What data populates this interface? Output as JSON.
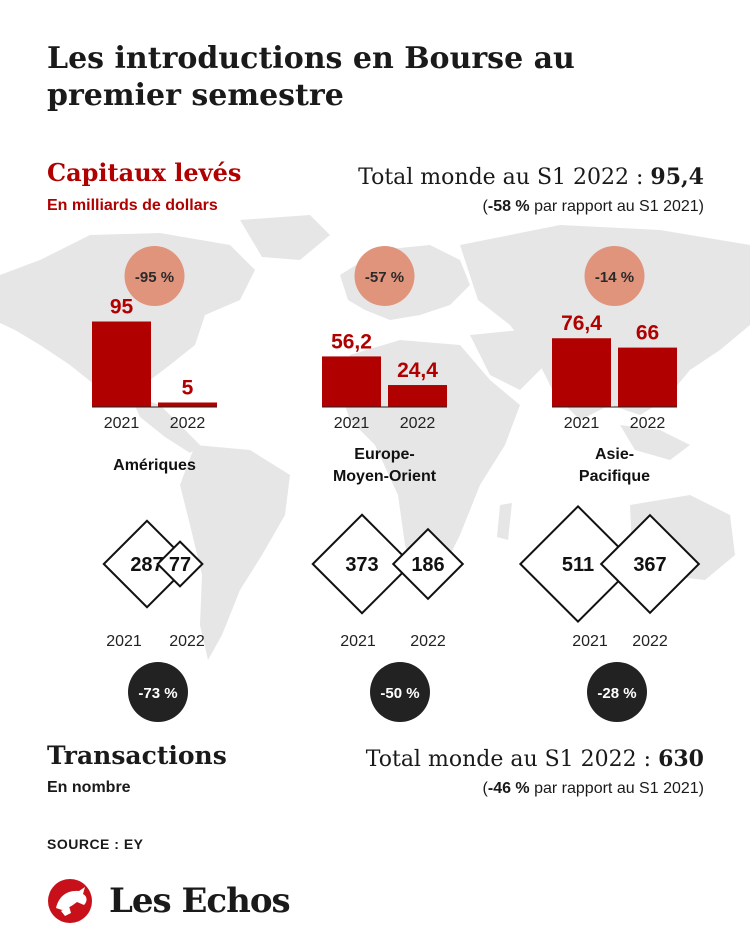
{
  "title": "Les introductions en Bourse au premier semestre",
  "colors": {
    "bar": "#b10000",
    "cap_change_circle": "#e1947c",
    "tx_change_circle": "#222222",
    "map": "#e6e6e6"
  },
  "capitaux": {
    "title": "Capitaux levés",
    "subtitle": "En milliards de dollars",
    "total_label": "Total monde au S1 2022 : ",
    "total_value": "95,4",
    "change_open": "(",
    "change_value": "-58 %",
    "change_rest": " par rapport au S1 2021)"
  },
  "transactions": {
    "title": "Transactions",
    "subtitle": "En nombre",
    "total_label": "Total monde au S1 2022 : ",
    "total_value": "630",
    "change_open": "(",
    "change_value": "-46 %",
    "change_rest": " par rapport au S1 2021)"
  },
  "source": "SOURCE : EY",
  "brand": {
    "name": "Les Echos",
    "logo": "rooster-logo"
  },
  "chart_data": [
    {
      "type": "bar",
      "title": "Capitaux levés",
      "unit": "En milliards de dollars",
      "categories": [
        "Amériques",
        "Europe-Moyen-Orient",
        "Asie-Pacifique"
      ],
      "category_lines": [
        [
          "Amériques"
        ],
        [
          "Europe-",
          "Moyen-Orient"
        ],
        [
          "Asie-",
          "Pacifique"
        ]
      ],
      "years": [
        "2021",
        "2022"
      ],
      "series": [
        {
          "name": "2021",
          "values": [
            95,
            56.2,
            76.4
          ],
          "labels": [
            "95",
            "56,2",
            "76,4"
          ]
        },
        {
          "name": "2022",
          "values": [
            5,
            24.4,
            66
          ],
          "labels": [
            "5",
            "24,4",
            "66"
          ]
        }
      ],
      "changes": [
        "-95 %",
        "-57 %",
        "-14 %"
      ]
    },
    {
      "type": "area",
      "title": "Transactions",
      "unit": "En nombre",
      "categories": [
        "Amériques",
        "Europe-Moyen-Orient",
        "Asie-Pacifique"
      ],
      "years": [
        "2021",
        "2022"
      ],
      "series": [
        {
          "name": "2021",
          "values": [
            287,
            373,
            511
          ]
        },
        {
          "name": "2022",
          "values": [
            77,
            186,
            367
          ]
        }
      ],
      "changes": [
        "-73 %",
        "-50 %",
        "-28 %"
      ]
    }
  ]
}
